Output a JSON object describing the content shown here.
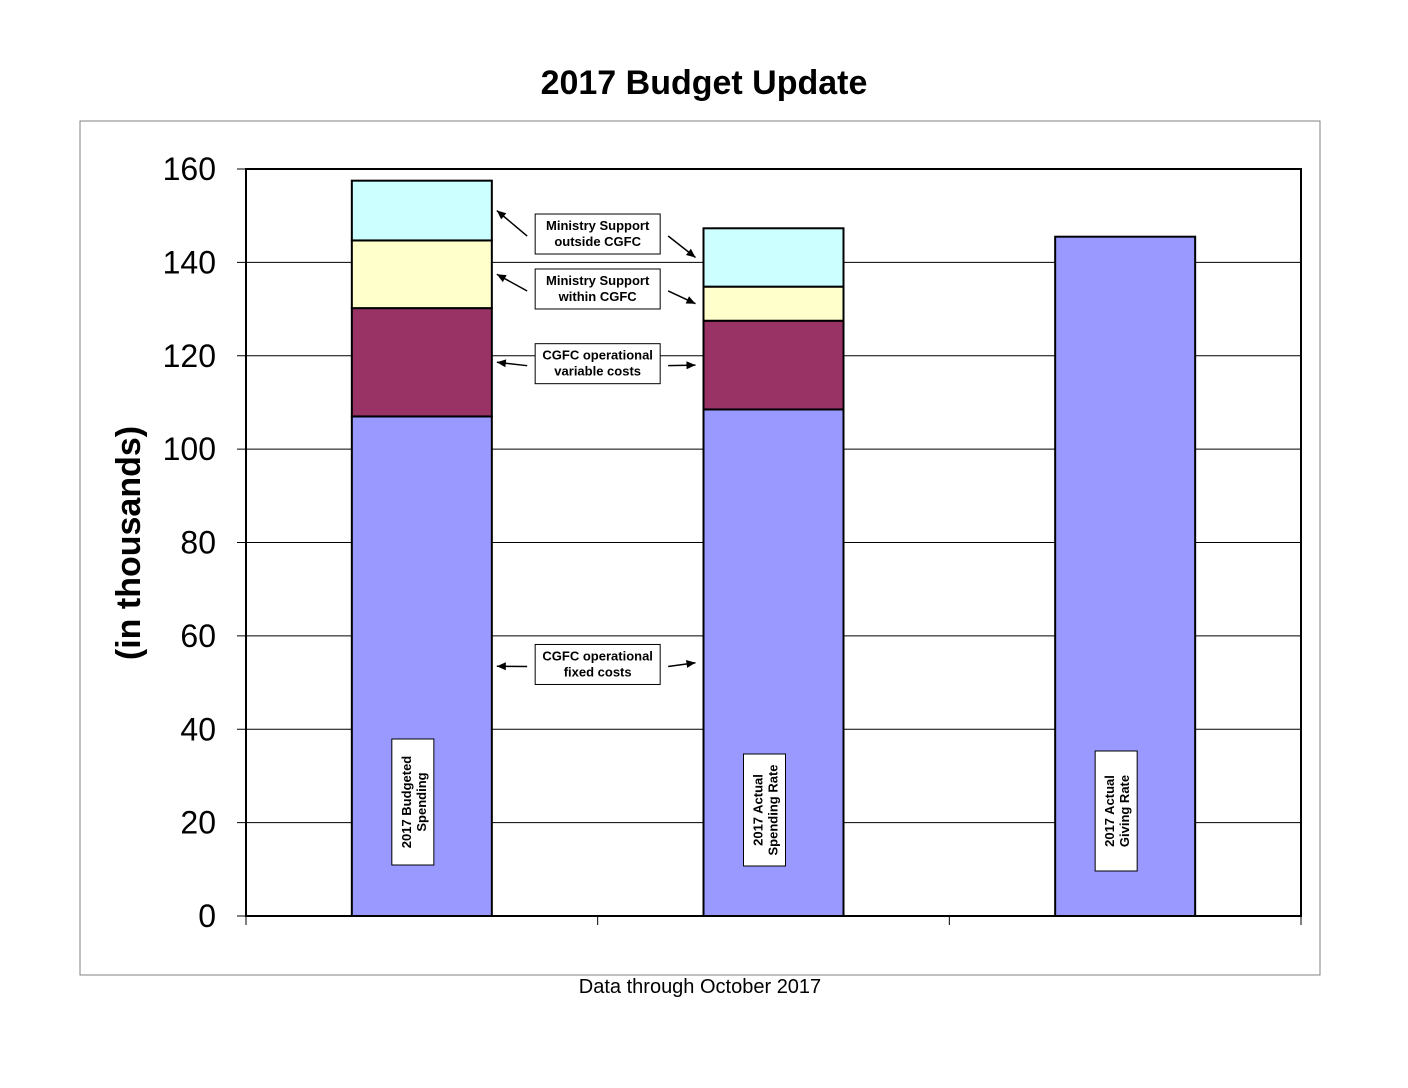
{
  "chart_data": {
    "type": "bar",
    "stacked": true,
    "title": "2017 Budget Update",
    "ylabel": "(in thousands)",
    "xlabel": "Data through October 2017",
    "ylim": [
      0,
      160
    ],
    "y_ticks": [
      "0",
      "20",
      "40",
      "60",
      "80",
      "100",
      "120",
      "140",
      "160"
    ],
    "grid": true,
    "categories": [
      "2017  Budgeted Spending",
      "2017 Actual Spending Rate",
      "2017 Actual Giving Rate"
    ],
    "bar_labels": [
      [
        "2017  Budgeted",
        "Spending"
      ],
      [
        "2017 Actual",
        "Spending Rate"
      ],
      [
        "2017 Actual",
        "Giving Rate"
      ]
    ],
    "series": [
      {
        "name": "CGFC operational fixed costs",
        "color": "#9999ff",
        "values": [
          107,
          108.5,
          145.5
        ]
      },
      {
        "name": "CGFC operational variable costs",
        "color": "#993366",
        "values": [
          23.2,
          19,
          0
        ]
      },
      {
        "name": "Ministry Support within CGFC",
        "color": "#ffffcc",
        "values": [
          14.5,
          7.3,
          0
        ]
      },
      {
        "name": "Ministry Support outside CGFC",
        "color": "#ccffff",
        "values": [
          12.8,
          12.5,
          0
        ]
      }
    ],
    "annotations": [
      {
        "series": 3,
        "lines": [
          "Ministry Support",
          "outside CGFC"
        ]
      },
      {
        "series": 2,
        "lines": [
          "Ministry Support",
          "within  CGFC"
        ]
      },
      {
        "series": 1,
        "lines": [
          "CGFC operational",
          "variable costs"
        ]
      },
      {
        "series": 0,
        "lines": [
          "CGFC operational",
          "fixed costs"
        ]
      }
    ]
  }
}
